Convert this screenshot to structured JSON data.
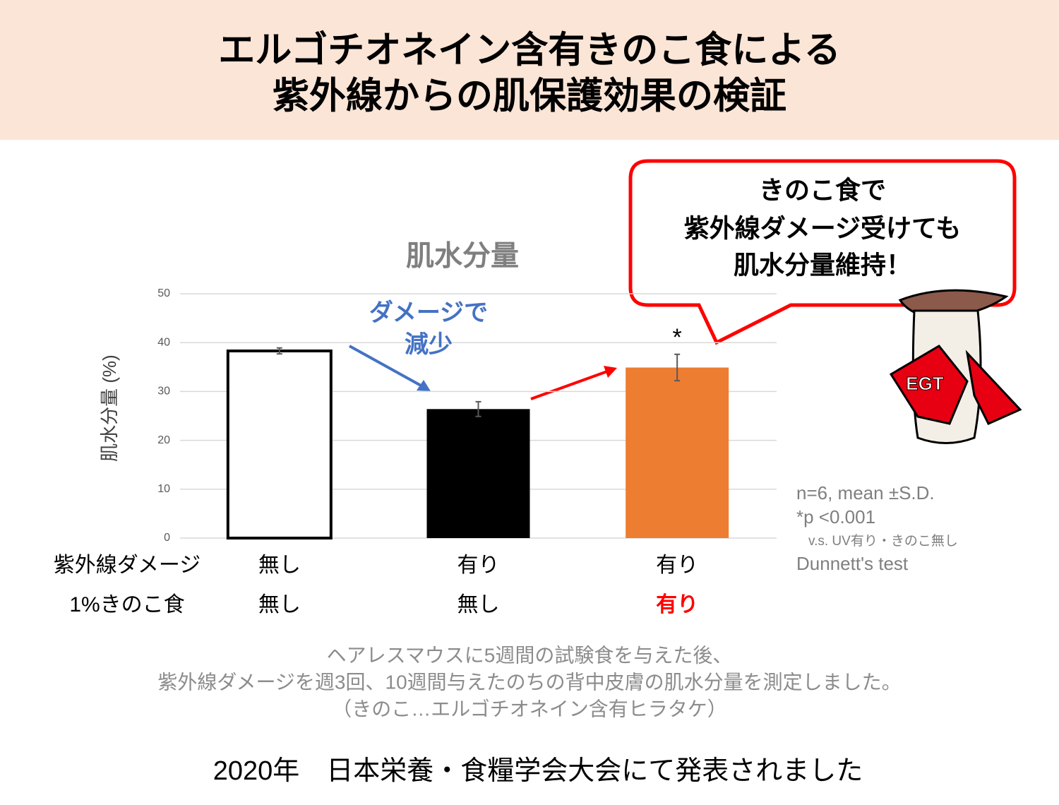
{
  "header": {
    "title": [
      "エルゴチオネイン含有きのこ食による",
      "紫外線からの肌保護効果の検証"
    ]
  },
  "callout": {
    "text": [
      "きのこ食で",
      "紫外線ダメージ受けても",
      "肌水分量維持！"
    ]
  },
  "mascot": {
    "label": "EGT"
  },
  "chart_data": {
    "type": "bar",
    "title": "肌水分量",
    "ylabel": "肌水分量 (%)",
    "categories": [
      null,
      null,
      null
    ],
    "values": [
      38.3,
      26.4,
      34.9
    ],
    "errors": [
      0.6,
      1.5,
      2.7
    ],
    "colors": [
      "#ffffff",
      "#000000",
      "#ed7d31"
    ],
    "significance": [
      null,
      null,
      "*"
    ],
    "ylim": [
      0,
      50
    ],
    "yticks": [
      0,
      10,
      20,
      30,
      40,
      50
    ],
    "grid": true,
    "annotations": [
      {
        "text": [
          "ダメージで",
          "減少"
        ],
        "color": "#4472c4"
      }
    ],
    "conditions": [
      {
        "label": "紫外線ダメージ",
        "values": [
          "無し",
          "有り",
          "有り"
        ],
        "colors": [
          "#000000",
          "#000000",
          "#000000"
        ]
      },
      {
        "label": "1%きのこ食",
        "values": [
          "無し",
          "無し",
          "有り"
        ],
        "colors": [
          "#000000",
          "#000000",
          "#ff0000"
        ]
      }
    ]
  },
  "stats_notes": [
    "n=6, mean ±S.D.",
    "*p <0.001",
    "v.s. UV有り・きのこ無し",
    "Dunnett's test"
  ],
  "description": [
    "ヘアレスマウスに5週間の試験食を与えた後、",
    "紫外線ダメージを週3回、10週間与えたのちの背中皮膚の肌水分量を測定しました。",
    "（きのこ…エルゴチオネイン含有ヒラタケ）"
  ],
  "footer": "2020年　日本栄養・食糧学会大会にて発表されました"
}
